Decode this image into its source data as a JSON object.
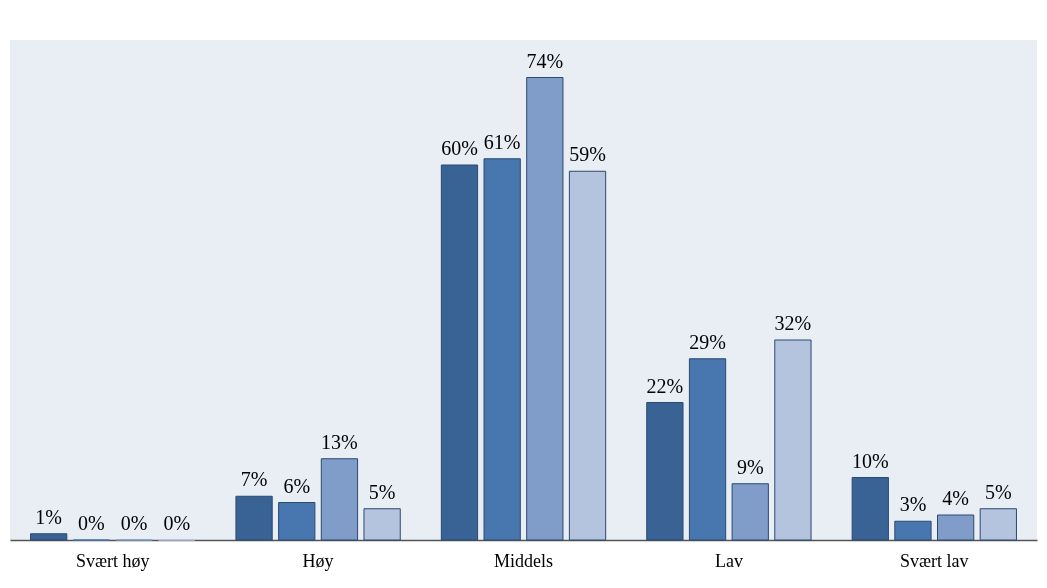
{
  "chart_data": {
    "type": "bar",
    "categories": [
      "Svært høy",
      "Høy",
      "Middels",
      "Lav",
      "Svært lav"
    ],
    "series": [
      {
        "color": "#3a6395",
        "values": [
          1,
          7,
          60,
          22,
          10
        ],
        "value_labels": [
          "1%",
          "7%",
          "60%",
          "22%",
          "10%"
        ]
      },
      {
        "color": "#4876ae",
        "values": [
          0,
          6,
          61,
          29,
          3
        ],
        "value_labels": [
          "0%",
          "6%",
          "61%",
          "29%",
          "3%"
        ]
      },
      {
        "color": "#7f9dc8",
        "values": [
          0,
          13,
          74,
          9,
          4
        ],
        "value_labels": [
          "0%",
          "13%",
          "74%",
          "9%",
          "4%"
        ]
      },
      {
        "color": "#b5c4de",
        "values": [
          0,
          5,
          59,
          32,
          5
        ],
        "value_labels": [
          "0%",
          "5%",
          "59%",
          "32%",
          "5%"
        ]
      }
    ],
    "grid": false,
    "legend": false
  }
}
